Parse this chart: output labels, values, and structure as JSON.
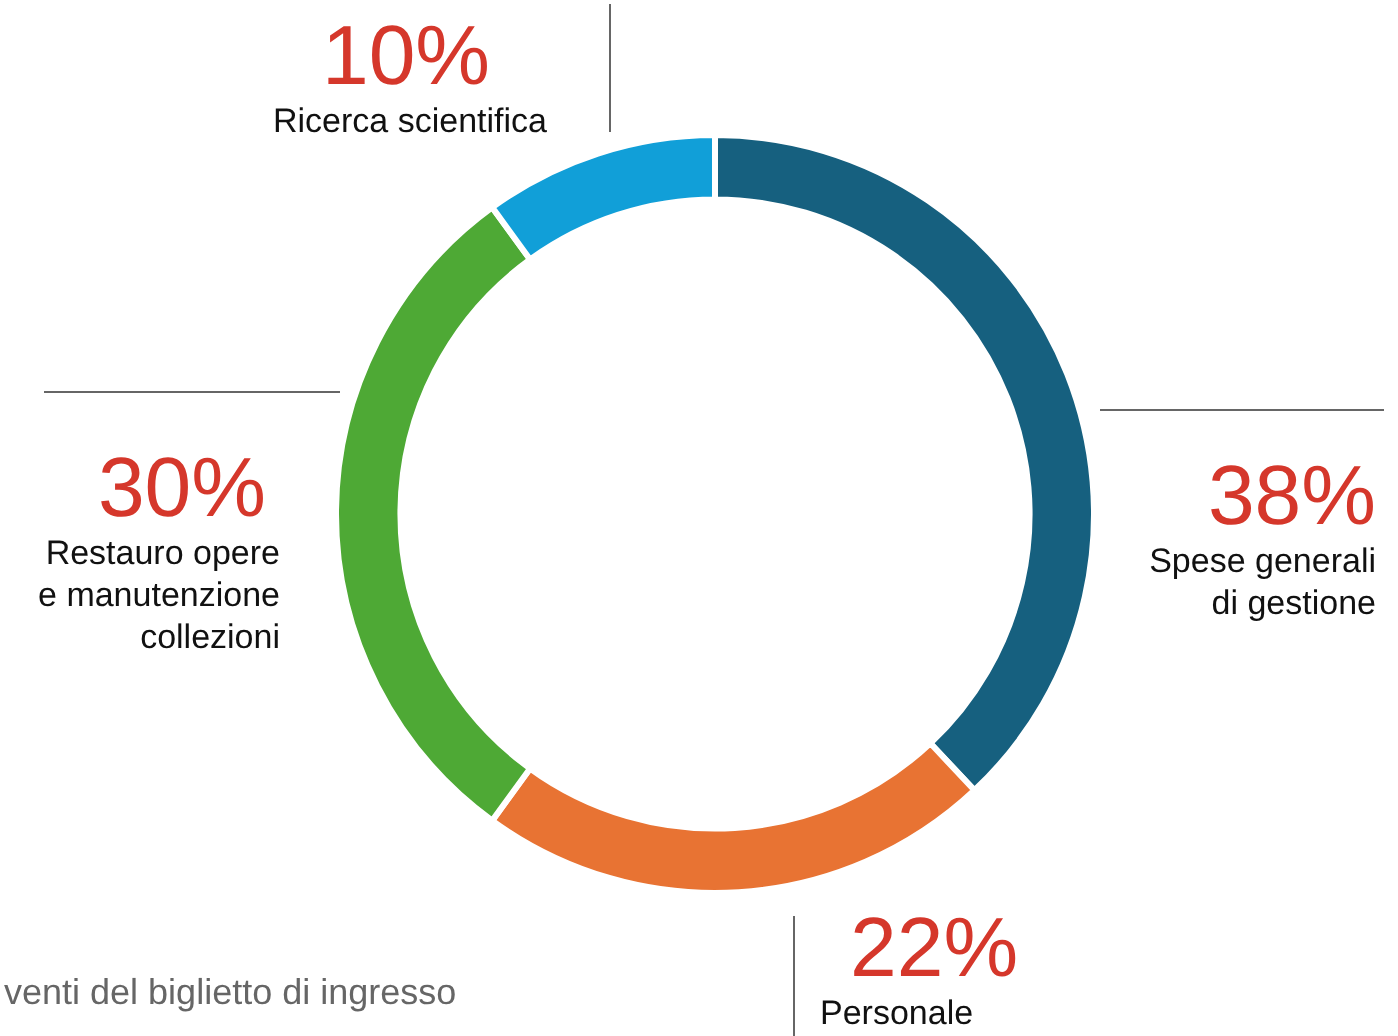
{
  "chart_data": {
    "type": "donut",
    "categories": [
      "Spese generali di gestione",
      "Personale",
      "Restauro opere e manutenzione collezioni",
      "Ricerca scientifica"
    ],
    "values": [
      38,
      22,
      30,
      10
    ],
    "colors": [
      "#16607f",
      "#e87333",
      "#4ea935",
      "#119fd8"
    ],
    "value_labels": [
      "38%",
      "22%",
      "30%",
      "10%"
    ],
    "legend": false,
    "annotations": [
      "venti del biglietto di ingresso"
    ]
  }
}
